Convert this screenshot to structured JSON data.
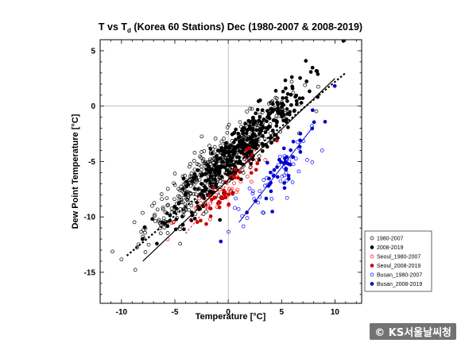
{
  "chart_data": {
    "type": "scatter",
    "title": "T vs Td (Korea 60 Stations) Dec (1980-2007 & 2008-2019)",
    "title_parts": {
      "main": "T vs T",
      "sub": "d",
      "rest": " (Korea 60 Stations) Dec (1980-2007 & 2008-2019)"
    },
    "xlabel": "Temperature [°C]",
    "ylabel": "Dew Point Temperature [°C]",
    "xlim": [
      -12,
      12.5
    ],
    "ylim": [
      -17.8,
      6
    ],
    "x_ticks": [
      -10,
      -5,
      0,
      5,
      10
    ],
    "y_ticks": [
      -15,
      -10,
      -5,
      0,
      5
    ],
    "reference_lines": {
      "x": 0,
      "y": 0
    },
    "legend_position": "bottom-right",
    "series": [
      {
        "name": "1980-2007",
        "color": "#000000",
        "filled": false,
        "linestyle": "dotted",
        "trend": [
          [
            -9.5,
            -13.5
          ],
          [
            11,
            3
          ]
        ],
        "center": [
          -1,
          -5.5
        ],
        "spread": [
          3.4,
          2.2
        ],
        "n": 460
      },
      {
        "name": "2008-2019",
        "color": "#000000",
        "filled": true,
        "linestyle": "solid",
        "trend": [
          [
            -8,
            -14
          ],
          [
            10,
            2.5
          ]
        ],
        "center": [
          1,
          -4
        ],
        "spread": [
          3.1,
          2.1
        ],
        "n": 380
      },
      {
        "name": "Seoul_1980-2007",
        "color": "#ff0000",
        "filled": false,
        "linestyle": "none",
        "trend": null,
        "center": [
          -0.5,
          -8
        ],
        "spread": [
          2.3,
          1.6
        ],
        "n": 35
      },
      {
        "name": "Seoul_2008-2019",
        "color": "#cc0000",
        "filled": true,
        "linestyle": "dotted",
        "trend": [
          [
            -4,
            -11.5
          ],
          [
            3,
            -3.5
          ]
        ],
        "center": [
          0,
          -7.5
        ],
        "spread": [
          2,
          1.6
        ],
        "n": 40
      },
      {
        "name": "Busan_1980-2007",
        "color": "#0000ff",
        "filled": false,
        "linestyle": "none",
        "trend": null,
        "center": [
          4.5,
          -6.5
        ],
        "spread": [
          2,
          1.8
        ],
        "n": 45
      },
      {
        "name": "Busan_2008-2019",
        "color": "#0000cc",
        "filled": true,
        "linestyle": "solid",
        "trend": [
          [
            1,
            -10.5
          ],
          [
            8,
            -1.8
          ]
        ],
        "center": [
          5,
          -5.5
        ],
        "spread": [
          1.9,
          1.7
        ],
        "n": 45
      }
    ],
    "watermark": "© KS서울날씨청"
  }
}
